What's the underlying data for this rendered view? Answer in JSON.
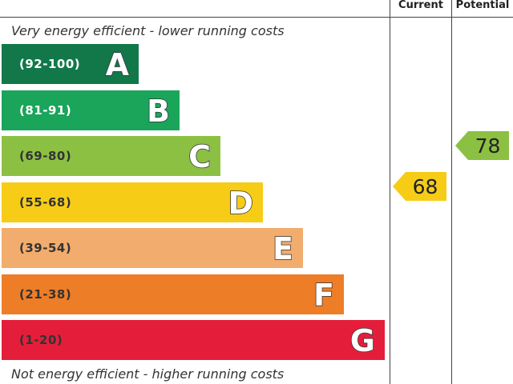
{
  "chart_data": {
    "type": "table",
    "columns": [
      "Current",
      "Potential"
    ],
    "top_caption": "Very energy efficient - lower running costs",
    "bottom_caption": "Not energy efficient - higher running costs",
    "bands": [
      {
        "letter": "A",
        "range": "(92-100)",
        "min": 92,
        "max": 100,
        "color": "#12784a",
        "range_color": "#ffffff"
      },
      {
        "letter": "B",
        "range": "(81-91)",
        "min": 81,
        "max": 91,
        "color": "#1aa55a",
        "range_color": "#ffffff"
      },
      {
        "letter": "C",
        "range": "(69-80)",
        "min": 69,
        "max": 80,
        "color": "#8cc043",
        "range_color": "#333333"
      },
      {
        "letter": "D",
        "range": "(55-68)",
        "min": 55,
        "max": 68,
        "color": "#f7cc17",
        "range_color": "#333333"
      },
      {
        "letter": "E",
        "range": "(39-54)",
        "min": 39,
        "max": 54,
        "color": "#f2ac6e",
        "range_color": "#333333"
      },
      {
        "letter": "F",
        "range": "(21-38)",
        "min": 21,
        "max": 38,
        "color": "#ee7d27",
        "range_color": "#333333"
      },
      {
        "letter": "G",
        "range": "(1-20)",
        "min": 1,
        "max": 20,
        "color": "#e41e3a",
        "range_color": "#333333"
      }
    ],
    "ratings": [
      {
        "column": "Current",
        "value": "68",
        "band": "D",
        "color": "#f7cc17"
      },
      {
        "column": "Potential",
        "value": "78",
        "band": "C",
        "color": "#8cc043"
      }
    ]
  }
}
